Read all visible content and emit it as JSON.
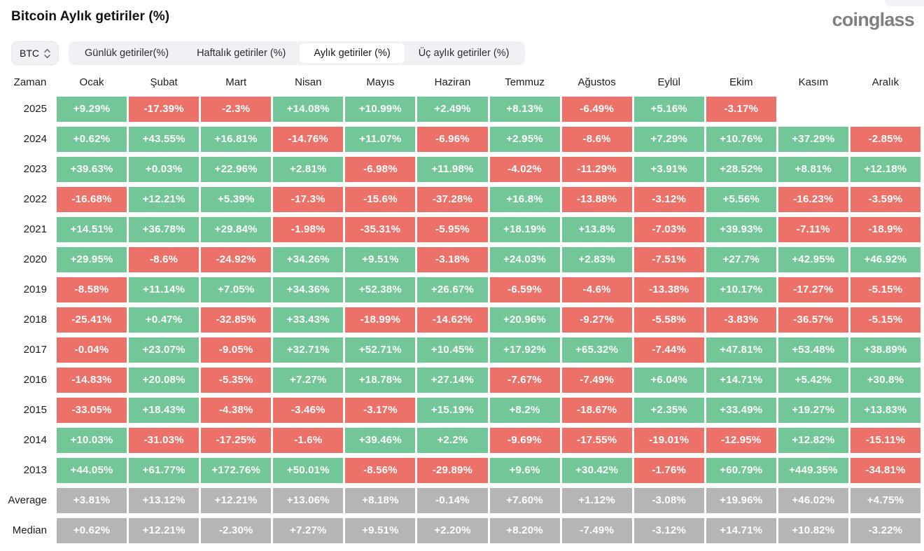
{
  "header": {
    "title": "Bitcoin Aylık getiriler (%)",
    "logo": "coinglass"
  },
  "controls": {
    "coin": "BTC",
    "coin_selector_icon": "updown-chevrons-icon",
    "tabs": [
      {
        "id": "daily",
        "label": "Günlük getiriler(%)",
        "active": false
      },
      {
        "id": "weekly",
        "label": "Haftalık getiriler (%)",
        "active": false
      },
      {
        "id": "monthly",
        "label": "Aylık getiriler (%)",
        "active": true
      },
      {
        "id": "quarterly",
        "label": "Üç aylık getiriler (%)",
        "active": false
      }
    ]
  },
  "colors": {
    "positive": "#72c697",
    "negative": "#ec7168",
    "summary": "#b5b5b5"
  },
  "table": {
    "time_header": "Zaman",
    "months": [
      "Ocak",
      "Şubat",
      "Mart",
      "Nisan",
      "Mayıs",
      "Haziran",
      "Temmuz",
      "Ağustos",
      "Eylül",
      "Ekim",
      "Kasım",
      "Aralık"
    ],
    "rows": [
      {
        "label": "2025",
        "values": [
          "+9.29%",
          "-17.39%",
          "-2.3%",
          "+14.08%",
          "+10.99%",
          "+2.49%",
          "+8.13%",
          "-6.49%",
          "+5.16%",
          "-3.17%",
          "",
          ""
        ]
      },
      {
        "label": "2024",
        "values": [
          "+0.62%",
          "+43.55%",
          "+16.81%",
          "-14.76%",
          "+11.07%",
          "-6.96%",
          "+2.95%",
          "-8.6%",
          "+7.29%",
          "+10.76%",
          "+37.29%",
          "-2.85%"
        ]
      },
      {
        "label": "2023",
        "values": [
          "+39.63%",
          "+0.03%",
          "+22.96%",
          "+2.81%",
          "-6.98%",
          "+11.98%",
          "-4.02%",
          "-11.29%",
          "+3.91%",
          "+28.52%",
          "+8.81%",
          "+12.18%"
        ]
      },
      {
        "label": "2022",
        "values": [
          "-16.68%",
          "+12.21%",
          "+5.39%",
          "-17.3%",
          "-15.6%",
          "-37.28%",
          "+16.8%",
          "-13.88%",
          "-3.12%",
          "+5.56%",
          "-16.23%",
          "-3.59%"
        ]
      },
      {
        "label": "2021",
        "values": [
          "+14.51%",
          "+36.78%",
          "+29.84%",
          "-1.98%",
          "-35.31%",
          "-5.95%",
          "+18.19%",
          "+13.8%",
          "-7.03%",
          "+39.93%",
          "-7.11%",
          "-18.9%"
        ]
      },
      {
        "label": "2020",
        "values": [
          "+29.95%",
          "-8.6%",
          "-24.92%",
          "+34.26%",
          "+9.51%",
          "-3.18%",
          "+24.03%",
          "+2.83%",
          "-7.51%",
          "+27.7%",
          "+42.95%",
          "+46.92%"
        ]
      },
      {
        "label": "2019",
        "values": [
          "-8.58%",
          "+11.14%",
          "+7.05%",
          "+34.36%",
          "+52.38%",
          "+26.67%",
          "-6.59%",
          "-4.6%",
          "-13.38%",
          "+10.17%",
          "-17.27%",
          "-5.15%"
        ]
      },
      {
        "label": "2018",
        "values": [
          "-25.41%",
          "+0.47%",
          "-32.85%",
          "+33.43%",
          "-18.99%",
          "-14.62%",
          "+20.96%",
          "-9.27%",
          "-5.58%",
          "-3.83%",
          "-36.57%",
          "-5.15%"
        ]
      },
      {
        "label": "2017",
        "values": [
          "-0.04%",
          "+23.07%",
          "-9.05%",
          "+32.71%",
          "+52.71%",
          "+10.45%",
          "+17.92%",
          "+65.32%",
          "-7.44%",
          "+47.81%",
          "+53.48%",
          "+38.89%"
        ]
      },
      {
        "label": "2016",
        "values": [
          "-14.83%",
          "+20.08%",
          "-5.35%",
          "+7.27%",
          "+18.78%",
          "+27.14%",
          "-7.67%",
          "-7.49%",
          "+6.04%",
          "+14.71%",
          "+5.42%",
          "+30.8%"
        ]
      },
      {
        "label": "2015",
        "values": [
          "-33.05%",
          "+18.43%",
          "-4.38%",
          "-3.46%",
          "-3.17%",
          "+15.19%",
          "+8.2%",
          "-18.67%",
          "+2.35%",
          "+33.49%",
          "+19.27%",
          "+13.83%"
        ]
      },
      {
        "label": "2014",
        "values": [
          "+10.03%",
          "-31.03%",
          "-17.25%",
          "-1.6%",
          "+39.46%",
          "+2.2%",
          "-9.69%",
          "-17.55%",
          "-19.01%",
          "-12.95%",
          "+12.82%",
          "-15.11%"
        ]
      },
      {
        "label": "2013",
        "values": [
          "+44.05%",
          "+61.77%",
          "+172.76%",
          "+50.01%",
          "-8.56%",
          "-29.89%",
          "+9.6%",
          "+30.42%",
          "-1.76%",
          "+60.79%",
          "+449.35%",
          "-34.81%"
        ]
      },
      {
        "label": "Average",
        "summary": true,
        "values": [
          "+3.81%",
          "+13.12%",
          "+12.21%",
          "+13.06%",
          "+8.18%",
          "-0.14%",
          "+7.60%",
          "+1.12%",
          "-3.08%",
          "+19.96%",
          "+46.02%",
          "+4.75%"
        ]
      },
      {
        "label": "Median",
        "summary": true,
        "values": [
          "+0.62%",
          "+12.21%",
          "-2.30%",
          "+7.27%",
          "+9.51%",
          "+2.20%",
          "+8.20%",
          "-7.49%",
          "-3.12%",
          "+14.71%",
          "+10.82%",
          "-3.22%"
        ]
      }
    ]
  }
}
